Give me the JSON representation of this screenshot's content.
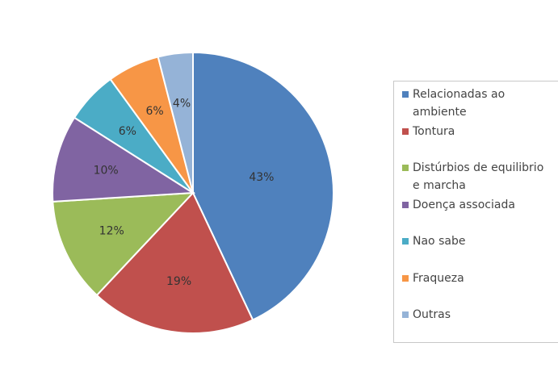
{
  "chart_data": {
    "type": "pie",
    "categories": [
      "Relacionadas ao ambiente",
      "Tontura",
      "Distúrbios de equilibrio  e marcha",
      "Doença associada",
      "Nao sabe",
      "Fraqueza",
      "Outras"
    ],
    "values": [
      43,
      19,
      12,
      10,
      6,
      6,
      4
    ],
    "value_labels": [
      "43%",
      "19%",
      "12%",
      "10%",
      "6%",
      "6%",
      "4%"
    ],
    "colors": [
      "#4f81bd",
      "#c0504d",
      "#9bbb59",
      "#8064a2",
      "#4bacc6",
      "#f79646",
      "#95b3d7"
    ],
    "legend": "right"
  }
}
